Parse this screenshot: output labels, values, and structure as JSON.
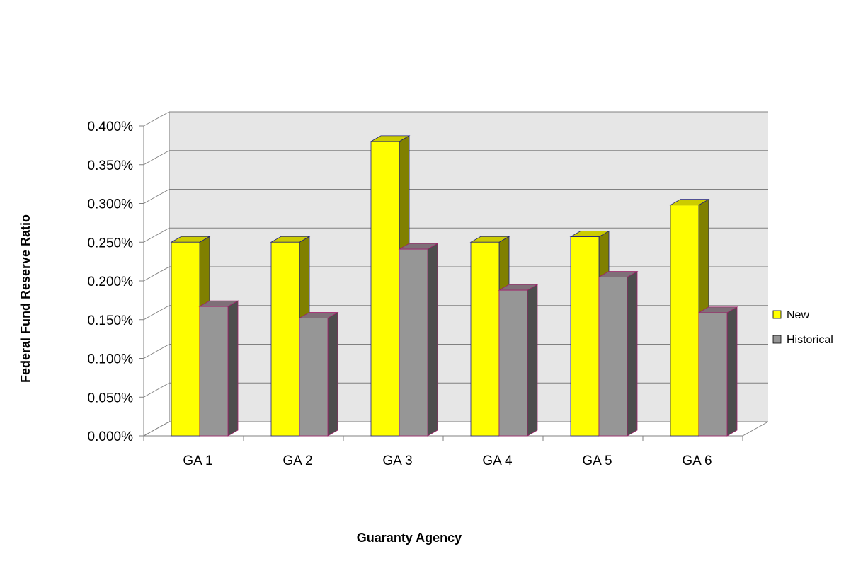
{
  "chart_data": {
    "type": "bar",
    "title": "",
    "xlabel": "Guaranty Agency",
    "ylabel": "Federal Fund Reserve Ratio",
    "categories": [
      "GA 1",
      "GA 2",
      "GA 3",
      "GA 4",
      "GA 5",
      "GA 6"
    ],
    "series": [
      {
        "name": "New",
        "values": [
          0.25,
          0.25,
          0.38,
          0.25,
          0.257,
          0.298
        ],
        "color": "#FFFF00"
      },
      {
        "name": "Historical",
        "values": [
          0.167,
          0.152,
          0.241,
          0.188,
          0.205,
          0.159
        ],
        "color": "#969696"
      }
    ],
    "ylim": [
      0,
      0.4
    ],
    "yticks": [
      "0.000%",
      "0.050%",
      "0.100%",
      "0.150%",
      "0.200%",
      "0.250%",
      "0.300%",
      "0.350%",
      "0.400%"
    ],
    "grid": true,
    "legend": "right"
  }
}
